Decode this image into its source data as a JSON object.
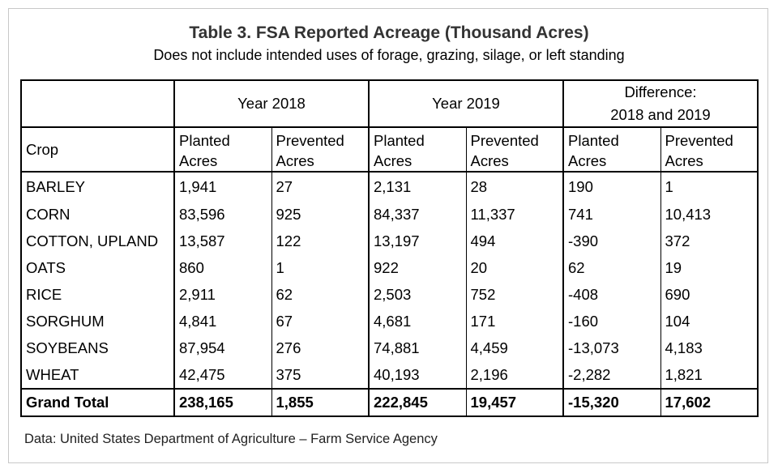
{
  "title": "Table 3. FSA Reported Acreage (Thousand Acres)",
  "subtitle": "Does not include intended uses of forage, grazing, silage, or left standing",
  "header": {
    "year_2018": "Year 2018",
    "year_2019": "Year 2019",
    "difference_line1": "Difference:",
    "difference_line2": "2018 and 2019",
    "crop": "Crop",
    "planted_line1": "Planted",
    "planted_line2": "Acres",
    "prevented_line1": "Prevented",
    "prevented_line2": "Acres"
  },
  "rows": [
    {
      "crop": "BARLEY",
      "v": [
        "1,941",
        "27",
        "2,131",
        "28",
        "190",
        "1"
      ]
    },
    {
      "crop": "CORN",
      "v": [
        "83,596",
        "925",
        "84,337",
        "11,337",
        "741",
        "10,413"
      ]
    },
    {
      "crop": "COTTON,  UPLAND",
      "v": [
        "13,587",
        "122",
        "13,197",
        "494",
        "-390",
        "372"
      ]
    },
    {
      "crop": "OATS",
      "v": [
        "860",
        "1",
        "922",
        "20",
        "62",
        "19"
      ]
    },
    {
      "crop": "RICE",
      "v": [
        "2,911",
        "62",
        "2,503",
        "752",
        "-408",
        "690"
      ]
    },
    {
      "crop": "SORGHUM",
      "v": [
        "4,841",
        "67",
        "4,681",
        "171",
        "-160",
        "104"
      ]
    },
    {
      "crop": "SOYBEANS",
      "v": [
        "87,954",
        "276",
        "74,881",
        "4,459",
        "-13,073",
        "4,183"
      ]
    },
    {
      "crop": "WHEAT",
      "v": [
        "42,475",
        "375",
        "40,193",
        "2,196",
        "-2,282",
        "1,821"
      ]
    }
  ],
  "total": {
    "crop": "Grand Total",
    "v": [
      "238,165",
      "1,855",
      "222,845",
      "19,457",
      "-15,320",
      "17,602"
    ]
  },
  "source": "Data: United States Department of Agriculture – Farm Service Agency"
}
